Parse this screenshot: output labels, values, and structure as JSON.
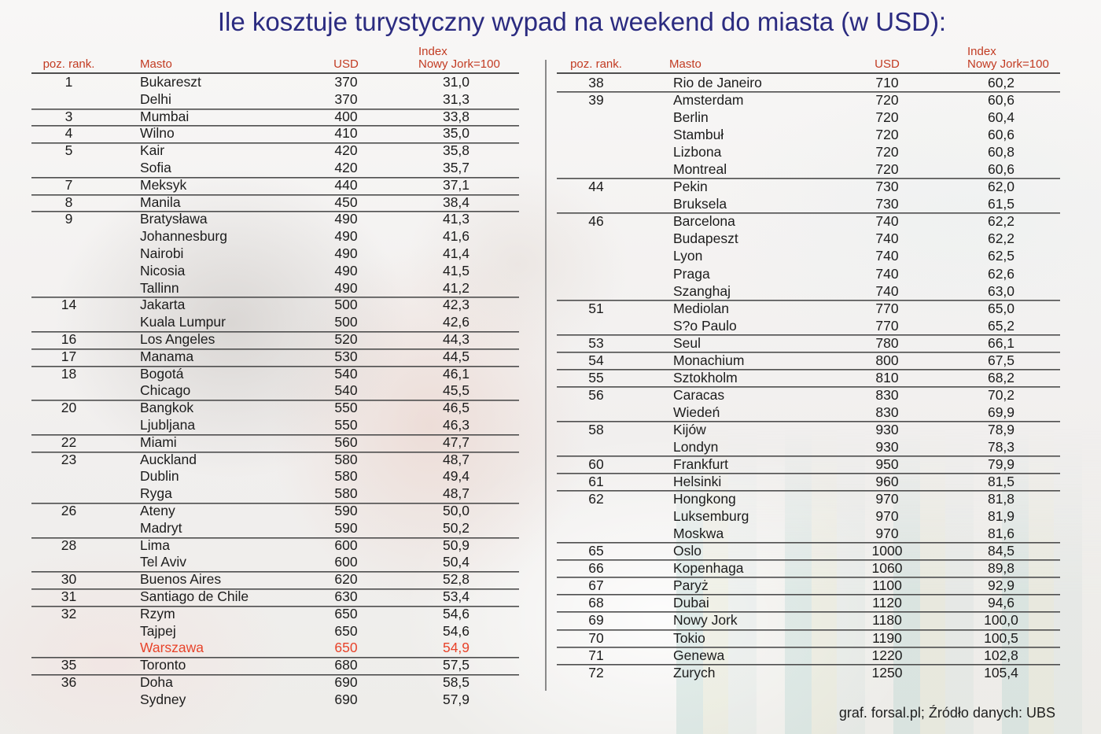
{
  "title": "Ile kosztuje turystyczny wypad na weekend do miasta (w USD):",
  "footer_credit": "graf. forsal.pl; Źródło danych: UBS",
  "columns": {
    "rank": "poz. rank.",
    "city": "Masto",
    "usd": "USD",
    "index_line1": "Index",
    "index_line2": "Nowy Jork=100"
  },
  "colors": {
    "title_color": "#2b2b80",
    "header_color": "#c23b22",
    "body_color": "#1c1c1c",
    "highlight_color": "#e8432a",
    "rule_color": "#4f4f4f",
    "divider_color": "#8a8a8a"
  },
  "chart_data": {
    "type": "table",
    "title": "Ile kosztuje turystyczny wypad na weekend do miasta (w USD):",
    "columns": [
      "poz. rank.",
      "Masto",
      "USD",
      "Index Nowy Jork=100"
    ],
    "source": "graf. forsal.pl; Źródło danych: UBS",
    "tables": [
      {
        "name": "left",
        "rows": [
          {
            "rank": "1",
            "city": "Bukareszt",
            "usd": "370",
            "index": "31,0"
          },
          {
            "rank": "",
            "city": "Delhi",
            "usd": "370",
            "index": "31,3"
          },
          {
            "rank": "3",
            "city": "Mumbai",
            "usd": "400",
            "index": "33,8"
          },
          {
            "rank": "4",
            "city": "Wilno",
            "usd": "410",
            "index": "35,0"
          },
          {
            "rank": "5",
            "city": "Kair",
            "usd": "420",
            "index": "35,8"
          },
          {
            "rank": "",
            "city": "Sofia",
            "usd": "420",
            "index": "35,7"
          },
          {
            "rank": "7",
            "city": "Meksyk",
            "usd": "440",
            "index": "37,1"
          },
          {
            "rank": "8",
            "city": "Manila",
            "usd": "450",
            "index": "38,4"
          },
          {
            "rank": "9",
            "city": "Bratysława",
            "usd": "490",
            "index": "41,3"
          },
          {
            "rank": "",
            "city": "Johannesburg",
            "usd": "490",
            "index": "41,6"
          },
          {
            "rank": "",
            "city": "Nairobi",
            "usd": "490",
            "index": "41,4"
          },
          {
            "rank": "",
            "city": "Nicosia",
            "usd": "490",
            "index": "41,5"
          },
          {
            "rank": "",
            "city": "Tallinn",
            "usd": "490",
            "index": "41,2"
          },
          {
            "rank": "14",
            "city": "Jakarta",
            "usd": "500",
            "index": "42,3"
          },
          {
            "rank": "",
            "city": "Kuala Lumpur",
            "usd": "500",
            "index": "42,6"
          },
          {
            "rank": "16",
            "city": "Los Angeles",
            "usd": "520",
            "index": "44,3"
          },
          {
            "rank": "17",
            "city": "Manama",
            "usd": "530",
            "index": "44,5"
          },
          {
            "rank": "18",
            "city": "Bogotá",
            "usd": "540",
            "index": "46,1"
          },
          {
            "rank": "",
            "city": "Chicago",
            "usd": "540",
            "index": "45,5"
          },
          {
            "rank": "20",
            "city": "Bangkok",
            "usd": "550",
            "index": "46,5"
          },
          {
            "rank": "",
            "city": "Ljubljana",
            "usd": "550",
            "index": "46,3"
          },
          {
            "rank": "22",
            "city": "Miami",
            "usd": "560",
            "index": "47,7"
          },
          {
            "rank": "23",
            "city": "Auckland",
            "usd": "580",
            "index": "48,7"
          },
          {
            "rank": "",
            "city": "Dublin",
            "usd": "580",
            "index": "49,4"
          },
          {
            "rank": "",
            "city": "Ryga",
            "usd": "580",
            "index": "48,7"
          },
          {
            "rank": "26",
            "city": "Ateny",
            "usd": "590",
            "index": "50,0"
          },
          {
            "rank": "",
            "city": "Madryt",
            "usd": "590",
            "index": "50,2"
          },
          {
            "rank": "28",
            "city": "Lima",
            "usd": "600",
            "index": "50,9"
          },
          {
            "rank": "",
            "city": "Tel Aviv",
            "usd": "600",
            "index": "50,4"
          },
          {
            "rank": "30",
            "city": "Buenos Aires",
            "usd": "620",
            "index": "52,8"
          },
          {
            "rank": "31",
            "city": "Santiago de Chile",
            "usd": "630",
            "index": "53,4"
          },
          {
            "rank": "32",
            "city": "Rzym",
            "usd": "650",
            "index": "54,6"
          },
          {
            "rank": "",
            "city": "Tajpej",
            "usd": "650",
            "index": "54,6"
          },
          {
            "rank": "",
            "city": "Warszawa",
            "usd": "650",
            "index": "54,9",
            "highlight": true
          },
          {
            "rank": "35",
            "city": "Toronto",
            "usd": "680",
            "index": "57,5"
          },
          {
            "rank": "36",
            "city": "Doha",
            "usd": "690",
            "index": "58,5"
          },
          {
            "rank": "",
            "city": "Sydney",
            "usd": "690",
            "index": "57,9"
          }
        ]
      },
      {
        "name": "right",
        "rows": [
          {
            "rank": "38",
            "city": "Rio de Janeiro",
            "usd": "710",
            "index": "60,2"
          },
          {
            "rank": "39",
            "city": "Amsterdam",
            "usd": "720",
            "index": "60,6"
          },
          {
            "rank": "",
            "city": "Berlin",
            "usd": "720",
            "index": "60,4"
          },
          {
            "rank": "",
            "city": "Stambuł",
            "usd": "720",
            "index": "60,6"
          },
          {
            "rank": "",
            "city": "Lizbona",
            "usd": "720",
            "index": "60,8"
          },
          {
            "rank": "",
            "city": "Montreal",
            "usd": "720",
            "index": "60,6"
          },
          {
            "rank": "44",
            "city": "Pekin",
            "usd": "730",
            "index": "62,0"
          },
          {
            "rank": "",
            "city": "Bruksela",
            "usd": "730",
            "index": "61,5"
          },
          {
            "rank": "46",
            "city": "Barcelona",
            "usd": "740",
            "index": "62,2"
          },
          {
            "rank": "",
            "city": "Budapeszt",
            "usd": "740",
            "index": "62,2"
          },
          {
            "rank": "",
            "city": "Lyon",
            "usd": "740",
            "index": "62,5"
          },
          {
            "rank": "",
            "city": "Praga",
            "usd": "740",
            "index": "62,6"
          },
          {
            "rank": "",
            "city": "Szanghaj",
            "usd": "740",
            "index": "63,0"
          },
          {
            "rank": "51",
            "city": "Mediolan",
            "usd": "770",
            "index": "65,0"
          },
          {
            "rank": "",
            "city": "S?o Paulo",
            "usd": "770",
            "index": "65,2"
          },
          {
            "rank": "53",
            "city": "Seul",
            "usd": "780",
            "index": "66,1"
          },
          {
            "rank": "54",
            "city": "Monachium",
            "usd": "800",
            "index": "67,5"
          },
          {
            "rank": "55",
            "city": "Sztokholm",
            "usd": "810",
            "index": "68,2"
          },
          {
            "rank": "56",
            "city": "Caracas",
            "usd": "830",
            "index": "70,2"
          },
          {
            "rank": "",
            "city": "Wiedeń",
            "usd": "830",
            "index": "69,9"
          },
          {
            "rank": "58",
            "city": "Kijów",
            "usd": "930",
            "index": "78,9"
          },
          {
            "rank": "",
            "city": "Londyn",
            "usd": "930",
            "index": "78,3"
          },
          {
            "rank": "60",
            "city": "Frankfurt",
            "usd": "950",
            "index": "79,9"
          },
          {
            "rank": "61",
            "city": "Helsinki",
            "usd": "960",
            "index": "81,5"
          },
          {
            "rank": "62",
            "city": "Hongkong",
            "usd": "970",
            "index": "81,8"
          },
          {
            "rank": "",
            "city": "Luksemburg",
            "usd": "970",
            "index": "81,9"
          },
          {
            "rank": "",
            "city": "Moskwa",
            "usd": "970",
            "index": "81,6"
          },
          {
            "rank": "65",
            "city": "Oslo",
            "usd": "1000",
            "index": "84,5"
          },
          {
            "rank": "66",
            "city": "Kopenhaga",
            "usd": "1060",
            "index": "89,8"
          },
          {
            "rank": "67",
            "city": "Paryż",
            "usd": "1100",
            "index": "92,9"
          },
          {
            "rank": "68",
            "city": "Dubai",
            "usd": "1120",
            "index": "94,6"
          },
          {
            "rank": "69",
            "city": "Nowy Jork",
            "usd": "1180",
            "index": "100,0"
          },
          {
            "rank": "70",
            "city": "Tokio",
            "usd": "1190",
            "index": "100,5"
          },
          {
            "rank": "71",
            "city": "Genewa",
            "usd": "1220",
            "index": "102,8"
          },
          {
            "rank": "72",
            "city": "Zurych",
            "usd": "1250",
            "index": "105,4"
          }
        ]
      }
    ]
  }
}
